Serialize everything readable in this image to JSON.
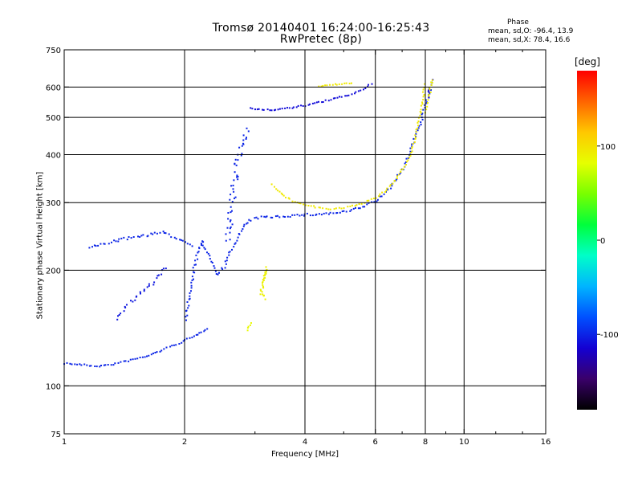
{
  "title": {
    "line1": "Tromsø 20140401 16:24:00-16:25:43",
    "line2": "RwPretec (8p)"
  },
  "stats": {
    "heading": "Phase",
    "line_o": "mean, sd,O: -96.4, 13.9",
    "line_x": "mean, sd,X: 78.4, 16.6"
  },
  "colorbar": {
    "unit": "[deg]",
    "ticks": [
      {
        "value": 100,
        "label": "100"
      },
      {
        "value": 0,
        "label": "0"
      },
      {
        "value": -100,
        "label": "-100"
      }
    ],
    "range": [
      -180,
      180
    ],
    "colors": [
      "#000000",
      "#3a006a",
      "#1400d2",
      "#0050ff",
      "#00b4ff",
      "#00ffc8",
      "#00ff3c",
      "#78ff00",
      "#e6ff00",
      "#ffc800",
      "#ff6400",
      "#ff0000"
    ]
  },
  "chart_data": {
    "type": "scatter",
    "title": "Tromsø 20140401 16:24:00-16:25:43",
    "subtitle": "RwPretec (8p)",
    "xlabel": "Frequency [MHz]",
    "ylabel": "Stationary phase Virtual Height [km]",
    "x_scale": "log",
    "y_scale": "log",
    "xlim": [
      1,
      16
    ],
    "ylim": [
      75,
      750
    ],
    "x_ticks": [
      1,
      2,
      4,
      6,
      8,
      10,
      16
    ],
    "x_minor_ticks": [
      3,
      5,
      7,
      9,
      12,
      14
    ],
    "y_ticks": [
      75,
      100,
      200,
      300,
      400,
      500,
      600,
      750
    ],
    "grid_x": [
      2,
      4,
      6,
      8,
      10
    ],
    "grid_y": [
      100,
      200,
      300,
      400,
      500,
      600
    ],
    "grid": true,
    "color_meaning": "phase [deg]",
    "series": [
      {
        "traces": [
          {
            "points": [
              [
                1.0,
                115
              ],
              [
                1.1,
                114
              ],
              [
                1.2,
                113
              ],
              [
                1.3,
                114
              ],
              [
                1.4,
                116
              ],
              [
                1.5,
                118
              ],
              [
                1.6,
                120
              ],
              [
                1.7,
                123
              ],
              [
                1.8,
                126
              ],
              [
                1.9,
                129
              ],
              [
                2.0,
                132
              ],
              [
                2.1,
                135
              ],
              [
                2.2,
                139
              ],
              [
                2.3,
                143
              ]
            ],
            "phase": -100,
            "scatter": 2
          },
          {
            "points": [
              [
                1.35,
                150
              ],
              [
                1.4,
                158
              ],
              [
                1.45,
                166
              ],
              [
                1.5,
                171
              ],
              [
                1.55,
                176
              ],
              [
                1.6,
                181
              ],
              [
                1.65,
                186
              ],
              [
                1.7,
                193
              ],
              [
                1.75,
                200
              ],
              [
                1.8,
                205
              ]
            ],
            "phase": -105,
            "scatter": 4
          },
          {
            "points": [
              [
                1.15,
                230
              ],
              [
                1.3,
                238
              ],
              [
                1.45,
                244
              ],
              [
                1.6,
                248
              ],
              [
                1.75,
                252
              ],
              [
                1.9,
                244
              ],
              [
                2.0,
                238
              ],
              [
                2.1,
                232
              ]
            ],
            "phase": -100,
            "scatter": 3
          },
          {
            "points": [
              [
                2.0,
                150
              ],
              [
                2.05,
                175
              ],
              [
                2.1,
                200
              ],
              [
                2.15,
                225
              ],
              [
                2.2,
                240
              ],
              [
                2.3,
                215
              ],
              [
                2.4,
                195
              ],
              [
                2.5,
                205
              ],
              [
                2.6,
                225
              ],
              [
                2.7,
                245
              ],
              [
                2.8,
                260
              ],
              [
                2.9,
                270
              ],
              [
                3.0,
                275
              ],
              [
                3.5,
                278
              ],
              [
                4.0,
                280
              ],
              [
                4.5,
                282
              ],
              [
                5.0,
                285
              ],
              [
                5.5,
                292
              ],
              [
                6.0,
                305
              ],
              [
                6.5,
                330
              ],
              [
                7.0,
                370
              ],
              [
                7.3,
                410
              ],
              [
                7.6,
                460
              ],
              [
                7.85,
                510
              ],
              [
                8.05,
                560
              ],
              [
                8.2,
                600
              ]
            ],
            "phase": -100,
            "scatter": 3
          },
          {
            "points": [
              [
                2.55,
                240
              ],
              [
                2.6,
                290
              ],
              [
                2.65,
                340
              ],
              [
                2.7,
                380
              ],
              [
                2.75,
                410
              ],
              [
                2.8,
                440
              ],
              [
                2.85,
                480
              ]
            ],
            "phase": -100,
            "scatter": 8
          },
          {
            "points": [
              [
                2.9,
                530
              ],
              [
                3.2,
                525
              ],
              [
                3.6,
                530
              ],
              [
                4.0,
                540
              ],
              [
                4.5,
                555
              ],
              [
                5.0,
                570
              ],
              [
                5.5,
                590
              ],
              [
                5.9,
                620
              ]
            ],
            "phase": -110,
            "scatter": 2
          },
          {
            "points": [
              [
                8.1,
                570
              ],
              [
                8.2,
                600
              ],
              [
                8.3,
                620
              ],
              [
                8.4,
                640
              ]
            ],
            "phase": -120,
            "scatter": 3
          }
        ]
      },
      {
        "traces": [
          {
            "points": [
              [
                3.3,
                335
              ],
              [
                3.5,
                315
              ],
              [
                3.7,
                305
              ],
              [
                4.0,
                297
              ],
              [
                4.3,
                292
              ],
              [
                4.7,
                290
              ],
              [
                5.0,
                292
              ],
              [
                5.3,
                296
              ],
              [
                5.6,
                302
              ],
              [
                6.0,
                310
              ],
              [
                6.3,
                322
              ],
              [
                6.7,
                345
              ],
              [
                7.0,
                370
              ],
              [
                7.3,
                400
              ],
              [
                7.5,
                440
              ],
              [
                7.7,
                500
              ],
              [
                7.85,
                560
              ],
              [
                7.95,
                620
              ]
            ],
            "phase": 95,
            "scatter": 2
          },
          {
            "points": [
              [
                3.1,
                185
              ],
              [
                3.15,
                195
              ],
              [
                3.2,
                205
              ],
              [
                3.1,
                175
              ],
              [
                3.15,
                170
              ],
              [
                3.05,
                180
              ]
            ],
            "phase": 90,
            "scatter": 3
          },
          {
            "points": [
              [
                2.85,
                140
              ],
              [
                2.9,
                145
              ],
              [
                2.95,
                148
              ]
            ],
            "phase": 85,
            "scatter": 2
          },
          {
            "points": [
              [
                4.3,
                605
              ],
              [
                4.6,
                610
              ],
              [
                5.0,
                615
              ],
              [
                5.3,
                620
              ]
            ],
            "phase": 95,
            "scatter": 2
          },
          {
            "points": [
              [
                8.0,
                520
              ],
              [
                8.1,
                560
              ],
              [
                8.2,
                600
              ],
              [
                8.3,
                640
              ]
            ],
            "phase": 90,
            "scatter": 3
          }
        ]
      }
    ]
  }
}
